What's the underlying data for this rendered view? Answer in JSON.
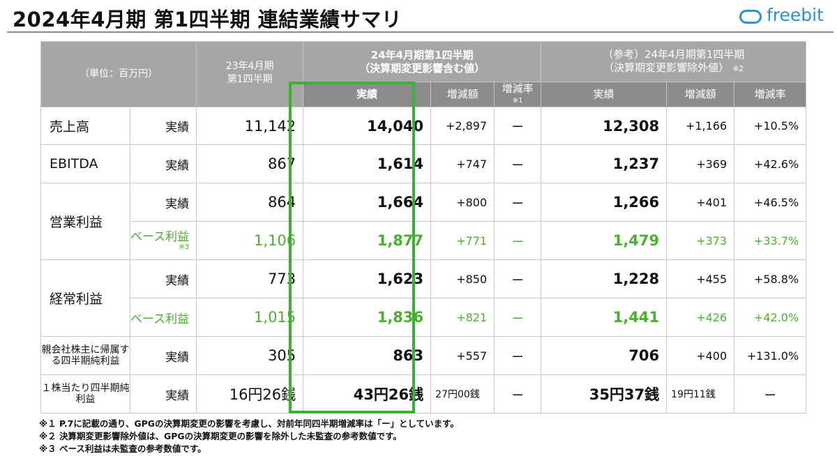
{
  "title": "2024年4月期 第1四半期 連結業績サマリ",
  "logo": {
    "text": "freebit",
    "color": "#2d8fd8"
  },
  "accent_green": "#3cb034",
  "header": {
    "unit": "（単位：百万円）",
    "prior_line1": "23年4月期",
    "prior_line2": "第1四半期",
    "current_line1": "24年4月期第1四半期",
    "current_line2": "（決算期変更影響含む値）",
    "ref_line1": "（参考）24年4月期第1四半期",
    "ref_line2": "（決算期変更影響除外値）",
    "ref_note": "※2",
    "actual": "実績",
    "change_amount": "増減額",
    "change_rate": "増減率",
    "change_rate_note": "※1"
  },
  "rows": [
    {
      "category": "売上高",
      "label": "実績",
      "prior": "11,142",
      "current": "14,040",
      "cur_diff": "+2,897",
      "cur_rate": "ー",
      "ref": "12,308",
      "ref_diff": "+1,166",
      "ref_rate": "+10.5%"
    },
    {
      "category": "EBITDA",
      "label": "実績",
      "prior": "867",
      "current": "1,614",
      "cur_diff": "+747",
      "cur_rate": "ー",
      "ref": "1,237",
      "ref_diff": "+369",
      "ref_rate": "+42.6%"
    },
    {
      "category": "営業利益",
      "label": "実績",
      "prior": "864",
      "current": "1,664",
      "cur_diff": "+800",
      "cur_rate": "ー",
      "ref": "1,266",
      "ref_diff": "+401",
      "ref_rate": "+46.5%"
    },
    {
      "category": "",
      "label": "ベース利益",
      "label_note": "※3",
      "prior": "1,106",
      "current": "1,877",
      "cur_diff": "+771",
      "cur_rate": "ー",
      "ref": "1,479",
      "ref_diff": "+373",
      "ref_rate": "+33.7%"
    },
    {
      "category": "経常利益",
      "label": "実績",
      "prior": "773",
      "current": "1,623",
      "cur_diff": "+850",
      "cur_rate": "ー",
      "ref": "1,228",
      "ref_diff": "+455",
      "ref_rate": "+58.8%"
    },
    {
      "category": "",
      "label": "ベース利益",
      "prior": "1,015",
      "current": "1,836",
      "cur_diff": "+821",
      "cur_rate": "ー",
      "ref": "1,441",
      "ref_diff": "+426",
      "ref_rate": "+42.0%"
    },
    {
      "category": "親会社株主に帰属する四半期純利益",
      "label": "実績",
      "prior": "305",
      "current": "863",
      "cur_diff": "+557",
      "cur_rate": "ー",
      "ref": "706",
      "ref_diff": "+400",
      "ref_rate": "+131.0%"
    },
    {
      "category": "１株当たり四半期純利益",
      "label": "実績",
      "prior": "16円26銭",
      "current": "43円26銭",
      "cur_diff": "27円00銭",
      "cur_rate": "ー",
      "ref": "35円37銭",
      "ref_diff": "19円11銭",
      "ref_rate": "ー"
    }
  ],
  "footnotes": [
    "※１ P.7に記載の通り、GPGの決算期変更の影響を考慮し、対前年同四半期増減率は「ー」としています。",
    "※２ 決算期変更影響除外値は、GPGの決算期変更の影響を除外した未監査の参考数値です。",
    "※３ ベース利益は未監査の参考数値です。"
  ]
}
